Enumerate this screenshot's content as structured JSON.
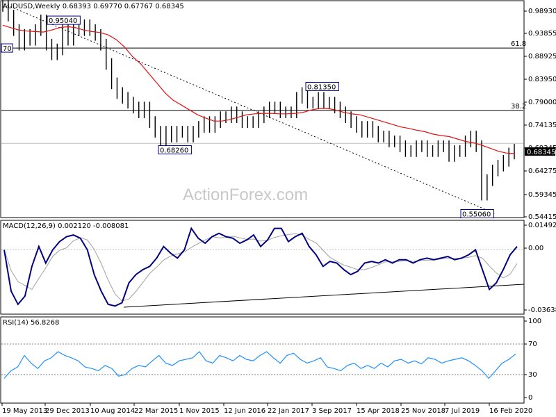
{
  "chart_data": [
    {
      "type": "candlestick",
      "title": "AUDUSD,Weekly",
      "ohlc": [
        "0.68393",
        "0.69770",
        "0.67767",
        "0.68345"
      ],
      "last_price_label": "0.68345",
      "ylim": [
        0.54415,
        0.9893
      ],
      "y_ticks": [
        "0.98930",
        "0.93855",
        "0.88925",
        "0.83950",
        "0.79000",
        "0.74135",
        "0.69345",
        "0.64275",
        "0.59345",
        "0.54415"
      ],
      "levels": [
        {
          "label": "61.8",
          "value": 0.893
        },
        {
          "label": "38.2",
          "value": 0.764
        },
        {
          "label": "",
          "value": 0.696
        }
      ],
      "annotations": [
        {
          "text": "0.95040",
          "x": "Dec 2013",
          "y": 0.9504
        },
        {
          "text": "0.81350",
          "x": "Sep 2017",
          "y": 0.8135
        },
        {
          "text": "0.68260",
          "x": "Jan 2016",
          "y": 0.6826
        },
        {
          "text": "0.55060",
          "x": "Mar 2020",
          "y": 0.5506
        },
        {
          "text": "70",
          "x": "May 2013",
          "y": 0.893
        }
      ],
      "close_series": [
        0.98,
        0.96,
        0.93,
        0.9,
        0.92,
        0.91,
        0.93,
        0.95,
        0.9,
        0.88,
        0.89,
        0.93,
        0.91,
        0.94,
        0.93,
        0.94,
        0.93,
        0.92,
        0.9,
        0.86,
        0.82,
        0.8,
        0.79,
        0.78,
        0.77,
        0.76,
        0.77,
        0.74,
        0.72,
        0.7,
        0.72,
        0.71,
        0.72,
        0.72,
        0.71,
        0.72,
        0.73,
        0.74,
        0.73,
        0.74,
        0.75,
        0.75,
        0.76,
        0.75,
        0.74,
        0.74,
        0.74,
        0.75,
        0.76,
        0.77,
        0.77,
        0.76,
        0.76,
        0.76,
        0.79,
        0.8,
        0.78,
        0.78,
        0.79,
        0.78,
        0.78,
        0.77,
        0.76,
        0.75,
        0.74,
        0.73,
        0.72,
        0.73,
        0.72,
        0.71,
        0.71,
        0.7,
        0.7,
        0.69,
        0.68,
        0.68,
        0.69,
        0.69,
        0.68,
        0.68,
        0.69,
        0.69,
        0.67,
        0.68,
        0.68,
        0.7,
        0.71,
        0.69,
        0.59,
        0.62,
        0.64,
        0.65,
        0.66,
        0.675,
        0.683
      ],
      "ma_series": [
        0.94,
        0.935,
        0.93,
        0.928,
        0.927,
        0.926,
        0.93,
        0.935,
        0.937,
        0.935,
        0.93,
        0.927,
        0.925,
        0.92,
        0.91,
        0.895,
        0.875,
        0.86,
        0.84,
        0.82,
        0.8,
        0.785,
        0.775,
        0.765,
        0.755,
        0.748,
        0.742,
        0.742,
        0.745,
        0.75,
        0.755,
        0.757,
        0.758,
        0.758,
        0.757,
        0.757,
        0.758,
        0.76,
        0.765,
        0.768,
        0.768,
        0.765,
        0.76,
        0.757,
        0.755,
        0.75,
        0.745,
        0.74,
        0.735,
        0.73,
        0.727,
        0.723,
        0.72,
        0.715,
        0.712,
        0.71,
        0.705,
        0.7,
        0.697,
        0.692,
        0.686,
        0.68,
        0.676,
        0.675
      ],
      "trendline": {
        "from": {
          "x": "May 2013",
          "y": 0.984
        },
        "to": {
          "x": "Mar 2020",
          "y": 0.551
        }
      }
    },
    {
      "type": "line",
      "title": "MACD(12,26,9) 0.002120 -0.008081",
      "y_ticks": [
        "0.014925",
        "0.00",
        "-0.036389"
      ],
      "ylim": [
        -0.036389,
        0.014925
      ],
      "macd_series": [
        0.0,
        -0.025,
        -0.033,
        -0.028,
        -0.01,
        0.002,
        -0.008,
        0.0,
        0.005,
        0.008,
        0.009,
        0.007,
        0.0,
        -0.015,
        -0.025,
        -0.033,
        -0.034,
        -0.032,
        -0.02,
        -0.015,
        -0.012,
        -0.01,
        -0.005,
        0.002,
        -0.002,
        -0.005,
        0.0,
        0.013,
        0.007,
        0.004,
        0.008,
        0.01,
        0.008,
        0.007,
        0.004,
        0.006,
        0.009,
        0.002,
        0.006,
        0.013,
        0.013,
        0.005,
        0.008,
        0.01,
        0.002,
        -0.003,
        -0.01,
        -0.007,
        -0.008,
        -0.012,
        -0.015,
        -0.013,
        -0.008,
        -0.007,
        -0.008,
        -0.006,
        -0.008,
        -0.006,
        -0.006,
        -0.008,
        -0.006,
        -0.005,
        -0.006,
        -0.005,
        -0.004,
        -0.006,
        -0.005,
        -0.003,
        0.0,
        -0.012,
        -0.024,
        -0.02,
        -0.012,
        -0.003,
        0.002
      ],
      "support_line": {
        "from": {
          "x": "Jul 2014"
        },
        "to": {
          "x": "Feb 2020"
        }
      }
    },
    {
      "type": "line",
      "title": "RSI(14) 56.8268",
      "y_ticks": [
        "100",
        "70",
        "30",
        "0"
      ],
      "ylim": [
        0,
        100
      ],
      "rsi_series": [
        25,
        35,
        40,
        55,
        45,
        38,
        48,
        52,
        60,
        55,
        52,
        48,
        40,
        38,
        35,
        42,
        38,
        28,
        30,
        38,
        42,
        40,
        48,
        55,
        45,
        42,
        48,
        50,
        52,
        60,
        48,
        45,
        55,
        52,
        48,
        55,
        50,
        48,
        55,
        60,
        52,
        45,
        55,
        58,
        50,
        45,
        48,
        52,
        40,
        38,
        35,
        42,
        45,
        38,
        42,
        38,
        45,
        40,
        48,
        50,
        45,
        48,
        44,
        52,
        50,
        45,
        48,
        50,
        52,
        48,
        42,
        35,
        25,
        35,
        45,
        50,
        57
      ],
      "levels": [
        "70",
        "30"
      ]
    }
  ],
  "x_axis": {
    "tick_labels": [
      "19 May 2013",
      "29 Dec 2013",
      "10 Aug 2014",
      "22 Mar 2015",
      "1 Nov 2015",
      "12 Jun 2016",
      "22 Jan 2017",
      "3 Sep 2017",
      "15 Apr 2018",
      "25 Nov 2018",
      "7 Jul 2019",
      "16 Feb 2020"
    ]
  },
  "watermark": "ActionForex.com",
  "colors": {
    "background": "#ffffff",
    "price_line": "#000000",
    "ma_line": "#e01010",
    "macd_line": "#000080",
    "signal_line": "#a0a0a0",
    "rsi_line": "#1e90ff",
    "grid": "#c0c0c0"
  }
}
